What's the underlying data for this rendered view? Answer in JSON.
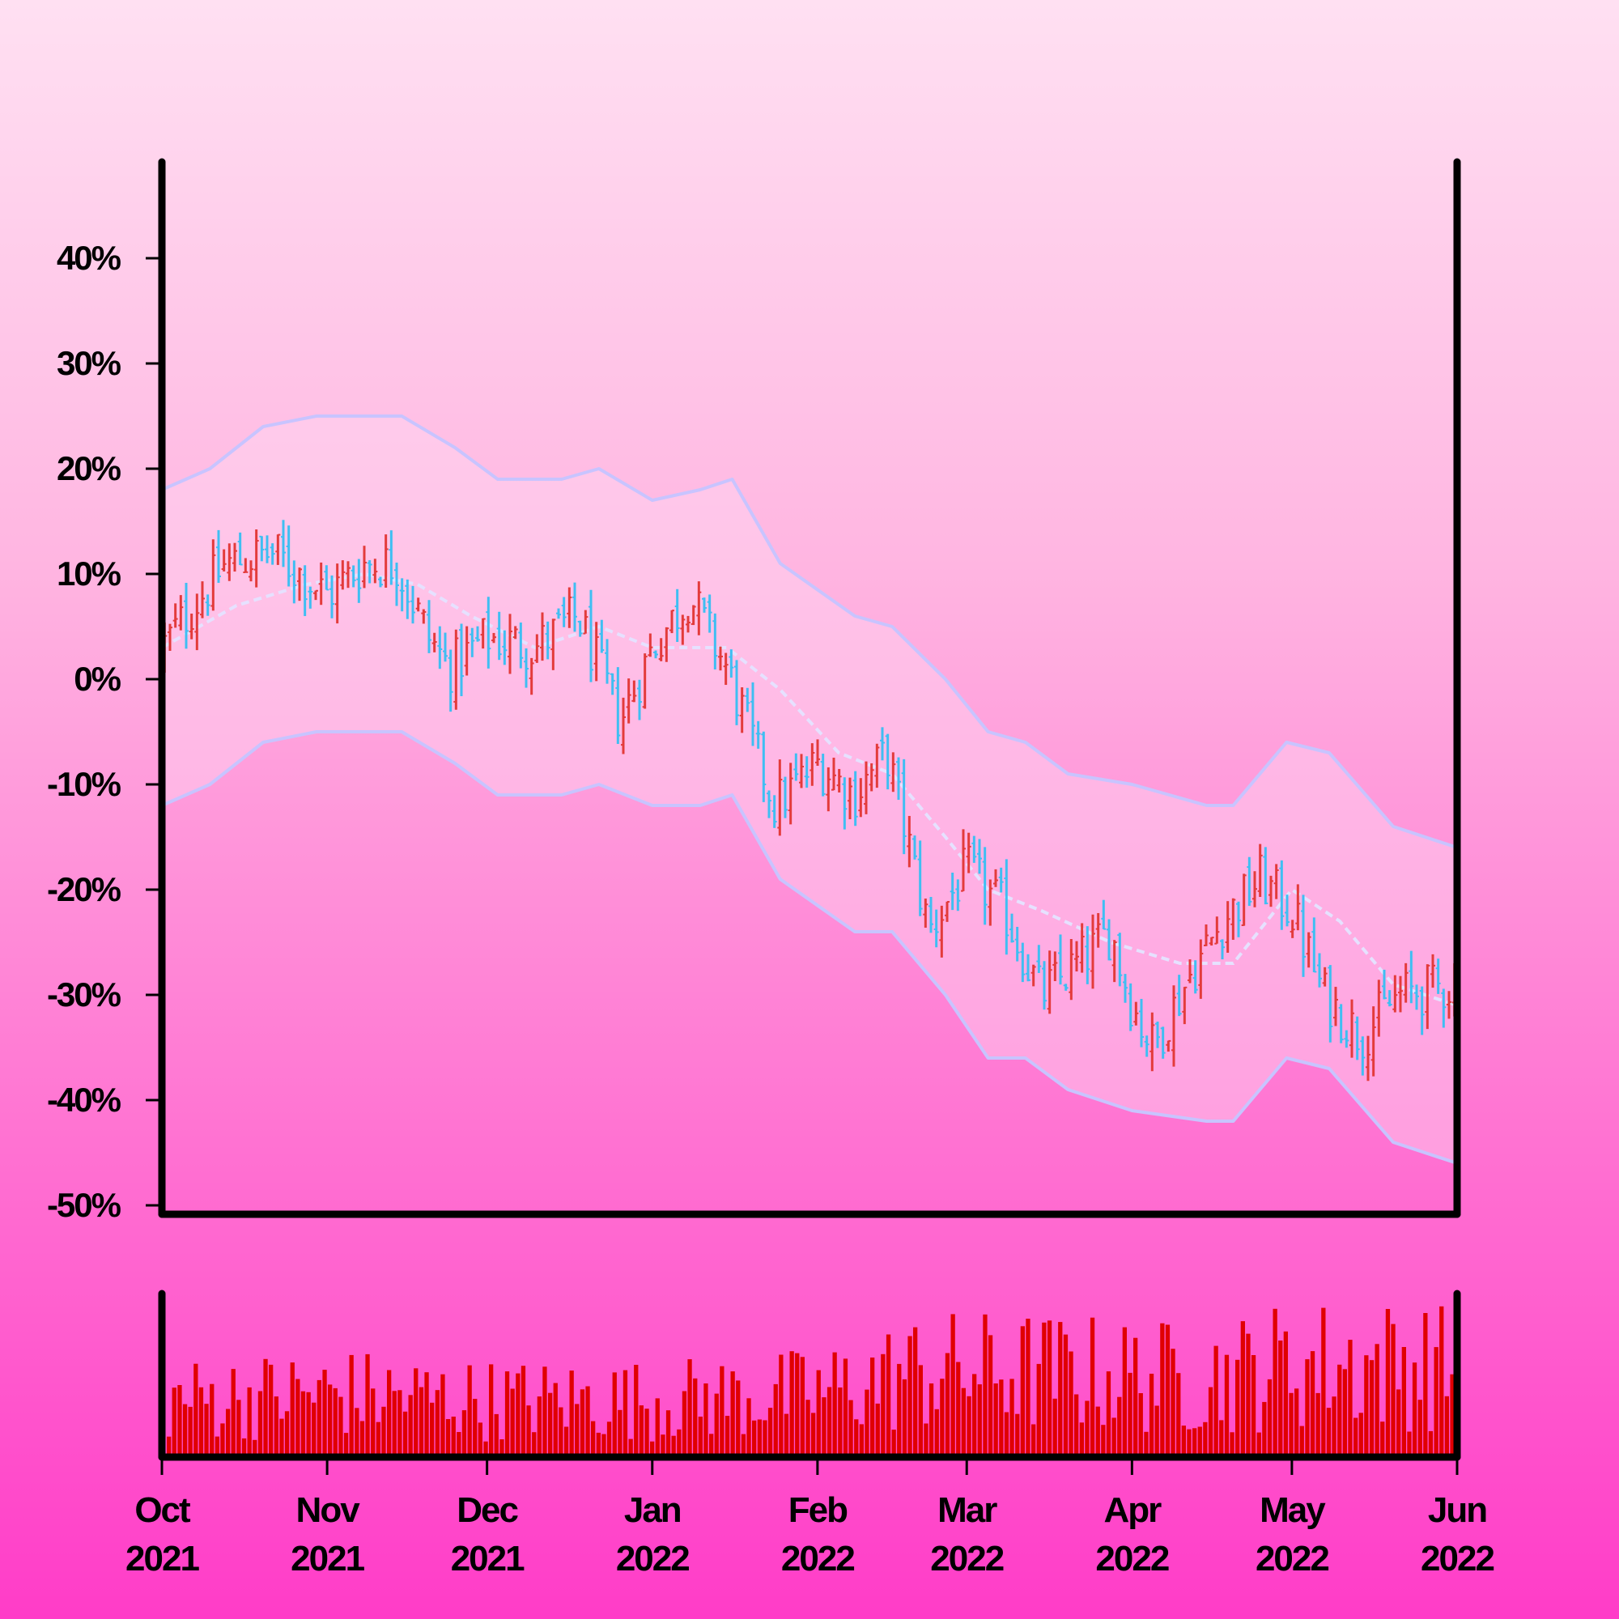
{
  "chart_data": {
    "type": "ohlc",
    "title": "",
    "xlabel": "",
    "ylabel": "",
    "ylim": [
      -50,
      50
    ],
    "yticks": [
      40,
      30,
      20,
      10,
      0,
      -10,
      -20,
      -30,
      -40,
      -50
    ],
    "ytick_labels": [
      "40%",
      "30%",
      "20%",
      "10%",
      "0%",
      "-10%",
      "-20%",
      "-30%",
      "-40%",
      "-50%"
    ],
    "x_range": [
      "2021-10-01",
      "2022-06-01"
    ],
    "xticks": [
      {
        "date": "2021-10-01",
        "month": "Oct",
        "year": "2021"
      },
      {
        "date": "2021-11-01",
        "month": "Nov",
        "year": "2021"
      },
      {
        "date": "2021-12-01",
        "month": "Dec",
        "year": "2021"
      },
      {
        "date": "2022-01-01",
        "month": "Jan",
        "year": "2022"
      },
      {
        "date": "2022-02-01",
        "month": "Feb",
        "year": "2022"
      },
      {
        "date": "2022-03-01",
        "month": "Mar",
        "year": "2022"
      },
      {
        "date": "2022-04-01",
        "month": "Apr",
        "year": "2022"
      },
      {
        "date": "2022-05-01",
        "month": "May",
        "year": "2022"
      },
      {
        "date": "2022-06-01",
        "month": "Jun",
        "year": "2022"
      }
    ],
    "trend_close": [
      {
        "date": "2021-10-01",
        "value": 3
      },
      {
        "date": "2021-10-13",
        "value": 11
      },
      {
        "date": "2021-10-22",
        "value": 12
      },
      {
        "date": "2021-11-01",
        "value": 8
      },
      {
        "date": "2021-11-08",
        "value": 11
      },
      {
        "date": "2021-11-14",
        "value": 11
      },
      {
        "date": "2021-11-20",
        "value": 4
      },
      {
        "date": "2021-11-24",
        "value": 1
      },
      {
        "date": "2021-12-01",
        "value": 4
      },
      {
        "date": "2021-12-10",
        "value": 3
      },
      {
        "date": "2021-12-18",
        "value": 6
      },
      {
        "date": "2021-12-26",
        "value": -4
      },
      {
        "date": "2022-01-01",
        "value": 3
      },
      {
        "date": "2022-01-08",
        "value": 8
      },
      {
        "date": "2022-01-15",
        "value": 1
      },
      {
        "date": "2022-01-24",
        "value": -12
      },
      {
        "date": "2022-02-01",
        "value": -8
      },
      {
        "date": "2022-02-08",
        "value": -11
      },
      {
        "date": "2022-02-14",
        "value": -7
      },
      {
        "date": "2022-02-22",
        "value": -24
      },
      {
        "date": "2022-03-01",
        "value": -18
      },
      {
        "date": "2022-03-08",
        "value": -22
      },
      {
        "date": "2022-03-15",
        "value": -30
      },
      {
        "date": "2022-03-22",
        "value": -27
      },
      {
        "date": "2022-03-28",
        "value": -24
      },
      {
        "date": "2022-04-01",
        "value": -31
      },
      {
        "date": "2022-04-05",
        "value": -35
      },
      {
        "date": "2022-04-12",
        "value": -28
      },
      {
        "date": "2022-04-18",
        "value": -23
      },
      {
        "date": "2022-04-25",
        "value": -19
      },
      {
        "date": "2022-05-01",
        "value": -22
      },
      {
        "date": "2022-05-07",
        "value": -30
      },
      {
        "date": "2022-05-14",
        "value": -34
      },
      {
        "date": "2022-05-21",
        "value": -30
      },
      {
        "date": "2022-06-01",
        "value": -29
      }
    ],
    "moving_average": [
      {
        "date": "2021-10-01",
        "value": 3
      },
      {
        "date": "2021-10-15",
        "value": 7
      },
      {
        "date": "2021-10-28",
        "value": 9
      },
      {
        "date": "2021-11-08",
        "value": 10
      },
      {
        "date": "2021-11-18",
        "value": 9
      },
      {
        "date": "2021-11-28",
        "value": 6
      },
      {
        "date": "2021-12-10",
        "value": 3
      },
      {
        "date": "2021-12-22",
        "value": 5
      },
      {
        "date": "2022-01-01",
        "value": 3
      },
      {
        "date": "2022-01-15",
        "value": 3
      },
      {
        "date": "2022-01-25",
        "value": -1
      },
      {
        "date": "2022-02-05",
        "value": -7
      },
      {
        "date": "2022-02-15",
        "value": -9
      },
      {
        "date": "2022-02-25",
        "value": -15
      },
      {
        "date": "2022-03-05",
        "value": -20
      },
      {
        "date": "2022-03-15",
        "value": -22
      },
      {
        "date": "2022-03-28",
        "value": -25
      },
      {
        "date": "2022-04-10",
        "value": -27
      },
      {
        "date": "2022-04-20",
        "value": -27
      },
      {
        "date": "2022-05-01",
        "value": -20
      },
      {
        "date": "2022-05-10",
        "value": -23
      },
      {
        "date": "2022-05-20",
        "value": -29
      },
      {
        "date": "2022-06-01",
        "value": -31
      }
    ],
    "band_upper": [
      {
        "date": "2021-10-01",
        "value": 18
      },
      {
        "date": "2021-10-10",
        "value": 20
      },
      {
        "date": "2021-10-20",
        "value": 24
      },
      {
        "date": "2021-10-30",
        "value": 25
      },
      {
        "date": "2021-11-15",
        "value": 25
      },
      {
        "date": "2021-11-25",
        "value": 22
      },
      {
        "date": "2021-12-03",
        "value": 19
      },
      {
        "date": "2021-12-15",
        "value": 19
      },
      {
        "date": "2021-12-22",
        "value": 20
      },
      {
        "date": "2022-01-01",
        "value": 17
      },
      {
        "date": "2022-01-10",
        "value": 18
      },
      {
        "date": "2022-01-16",
        "value": 19
      },
      {
        "date": "2022-01-25",
        "value": 11
      },
      {
        "date": "2022-02-08",
        "value": 6
      },
      {
        "date": "2022-02-15",
        "value": 5
      },
      {
        "date": "2022-02-25",
        "value": 0
      },
      {
        "date": "2022-03-05",
        "value": -5
      },
      {
        "date": "2022-03-12",
        "value": -6
      },
      {
        "date": "2022-03-20",
        "value": -9
      },
      {
        "date": "2022-04-01",
        "value": -10
      },
      {
        "date": "2022-04-15",
        "value": -12
      },
      {
        "date": "2022-04-20",
        "value": -12
      },
      {
        "date": "2022-04-30",
        "value": -6
      },
      {
        "date": "2022-05-08",
        "value": -7
      },
      {
        "date": "2022-05-20",
        "value": -14
      },
      {
        "date": "2022-06-01",
        "value": -16
      }
    ],
    "band_lower": [
      {
        "date": "2021-10-01",
        "value": -12
      },
      {
        "date": "2021-10-10",
        "value": -10
      },
      {
        "date": "2021-10-20",
        "value": -6
      },
      {
        "date": "2021-10-30",
        "value": -5
      },
      {
        "date": "2021-11-15",
        "value": -5
      },
      {
        "date": "2021-11-25",
        "value": -8
      },
      {
        "date": "2021-12-03",
        "value": -11
      },
      {
        "date": "2021-12-15",
        "value": -11
      },
      {
        "date": "2021-12-22",
        "value": -10
      },
      {
        "date": "2022-01-01",
        "value": -12
      },
      {
        "date": "2022-01-10",
        "value": -12
      },
      {
        "date": "2022-01-16",
        "value": -11
      },
      {
        "date": "2022-01-25",
        "value": -19
      },
      {
        "date": "2022-02-08",
        "value": -24
      },
      {
        "date": "2022-02-15",
        "value": -24
      },
      {
        "date": "2022-02-25",
        "value": -30
      },
      {
        "date": "2022-03-05",
        "value": -36
      },
      {
        "date": "2022-03-12",
        "value": -36
      },
      {
        "date": "2022-03-20",
        "value": -39
      },
      {
        "date": "2022-04-01",
        "value": -41
      },
      {
        "date": "2022-04-15",
        "value": -42
      },
      {
        "date": "2022-04-20",
        "value": -42
      },
      {
        "date": "2022-04-30",
        "value": -36
      },
      {
        "date": "2022-05-08",
        "value": -37
      },
      {
        "date": "2022-05-20",
        "value": -44
      },
      {
        "date": "2022-06-01",
        "value": -46
      }
    ],
    "volume_profile": [
      {
        "date": "2021-10-01",
        "value": 0.4
      },
      {
        "date": "2021-11-01",
        "value": 0.45
      },
      {
        "date": "2021-12-01",
        "value": 0.4
      },
      {
        "date": "2022-01-01",
        "value": 0.4
      },
      {
        "date": "2022-02-01",
        "value": 0.45
      },
      {
        "date": "2022-02-20",
        "value": 0.6
      },
      {
        "date": "2022-03-15",
        "value": 0.6
      },
      {
        "date": "2022-04-15",
        "value": 0.55
      },
      {
        "date": "2022-05-01",
        "value": 0.65
      },
      {
        "date": "2022-06-01",
        "value": 0.65
      }
    ],
    "colors": {
      "up": "#e33b3b",
      "down": "#3fbef2",
      "band": "#c8c4ff",
      "band_fill": "#ffd6f2",
      "ma": "#e6e1ff",
      "volume": "#e00000",
      "axis": "#000000"
    }
  }
}
